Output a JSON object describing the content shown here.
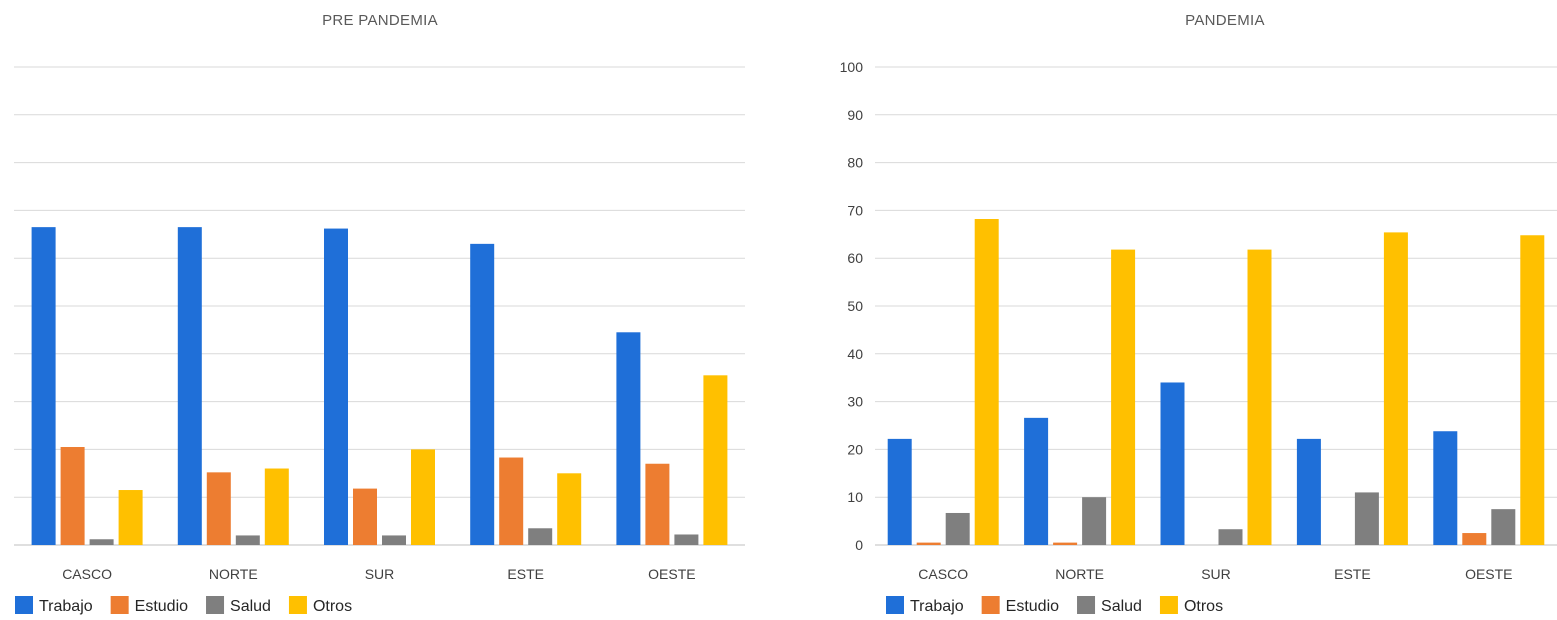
{
  "chart_data": [
    {
      "type": "bar",
      "title": "PRE PANDEMIA",
      "categories": [
        "CASCO",
        "NORTE",
        "SUR",
        "ESTE",
        "OESTE"
      ],
      "series": [
        {
          "name": "Trabajo",
          "color": "#1f6fd8",
          "values": [
            66.5,
            66.5,
            66.2,
            63,
            44.5
          ]
        },
        {
          "name": "Estudio",
          "color": "#ed7d31",
          "values": [
            20.5,
            15.2,
            11.8,
            18.3,
            17
          ]
        },
        {
          "name": "Salud",
          "color": "#7f7f7f",
          "values": [
            1.2,
            2,
            2,
            3.5,
            2.2
          ]
        },
        {
          "name": "Otros",
          "color": "#ffc000",
          "values": [
            11.5,
            16,
            20,
            15,
            35.5
          ]
        }
      ],
      "ylim": [
        0,
        100
      ],
      "yticks_visible": false,
      "grid": true,
      "legend": "bottom-left"
    },
    {
      "type": "bar",
      "title": "PANDEMIA",
      "categories": [
        "CASCO",
        "NORTE",
        "SUR",
        "ESTE",
        "OESTE"
      ],
      "series": [
        {
          "name": "Trabajo",
          "color": "#1f6fd8",
          "values": [
            22.2,
            26.6,
            34,
            22.2,
            23.8
          ]
        },
        {
          "name": "Estudio",
          "color": "#ed7d31",
          "values": [
            0.5,
            0.5,
            0,
            0,
            2.5
          ]
        },
        {
          "name": "Salud",
          "color": "#7f7f7f",
          "values": [
            6.7,
            10,
            3.3,
            11,
            7.5
          ]
        },
        {
          "name": "Otros",
          "color": "#ffc000",
          "values": [
            68.2,
            61.8,
            61.8,
            65.4,
            64.8
          ]
        }
      ],
      "ylim": [
        0,
        100
      ],
      "yticks": [
        0,
        10,
        20,
        30,
        40,
        50,
        60,
        70,
        80,
        90,
        100
      ],
      "yticks_visible": true,
      "grid": true,
      "legend": "bottom-left"
    }
  ]
}
